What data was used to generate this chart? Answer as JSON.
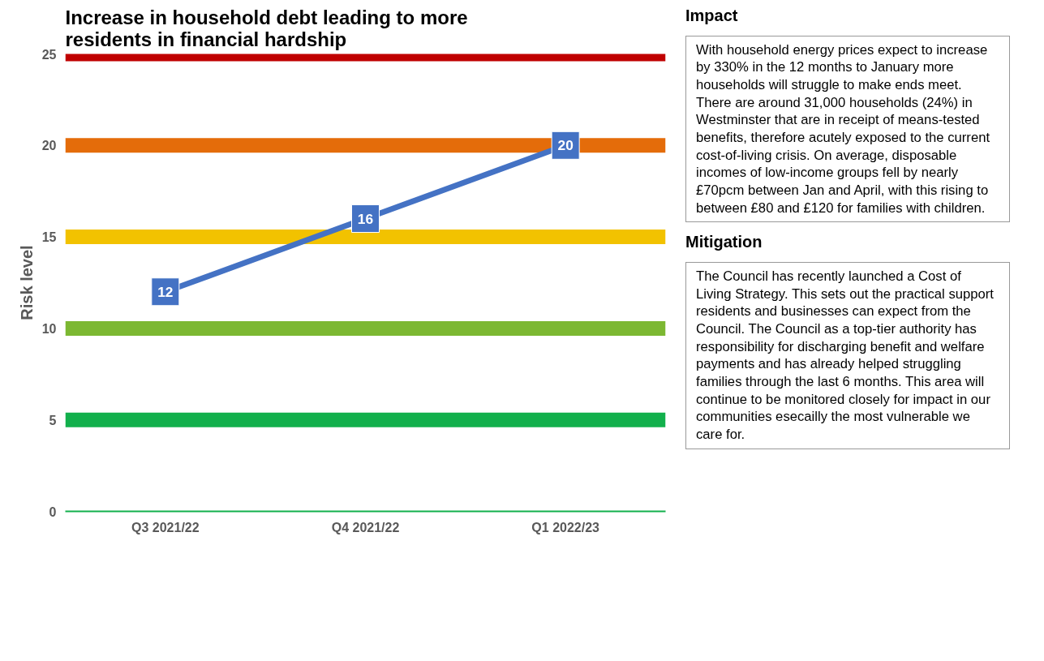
{
  "chart_data": {
    "type": "line",
    "title": "Increase in household debt leading to more\nresidents in financial hardship",
    "ylabel": "Risk level",
    "categories": [
      "Q3 2021/22",
      "Q4 2021/22",
      "Q1 2022/23"
    ],
    "series": [
      {
        "color": "#4472c4",
        "values": [
          12,
          16,
          20
        ]
      }
    ],
    "data_labels": true,
    "marker": "square",
    "line_style": "solid",
    "grid": false,
    "ylim": [
      0,
      25
    ],
    "yticks": [
      0,
      5,
      10,
      15,
      20,
      25
    ],
    "ref_lines": [
      {
        "axis": "y",
        "value": 25,
        "color": "#c00000"
      },
      {
        "axis": "y",
        "value": 20,
        "color": "#e46c0a"
      },
      {
        "axis": "y",
        "value": 15,
        "color": "#f2c200"
      },
      {
        "axis": "y",
        "value": 10,
        "color": "#7cb832"
      },
      {
        "axis": "y",
        "value": 5,
        "color": "#12b04c"
      }
    ],
    "annotations": [
      "Impact",
      "With household energy prices expect to increase by 330% in the 12 months to January more households will struggle to make ends meet. There are around 31,000 households (24%) in Westminster that are in receipt of means-tested benefits, therefore acutely exposed to the current cost-of-living crisis.  On average, disposable incomes  of low-income groups fell by nearly £70pcm between Jan and April, with this rising to between £80 and £120 for families with children.",
      "Mitigation",
      "The Council has recently launched a Cost of Living Strategy. This sets out the practical support residents and businesses can expect from the Council. The Council as a top-tier authority has responsibility for discharging benefit and welfare payments and has already helped struggling families through the last 6 months. This area will continue to be monitored closely for impact in our communities esecailly the most vulnerable we care for."
    ]
  }
}
